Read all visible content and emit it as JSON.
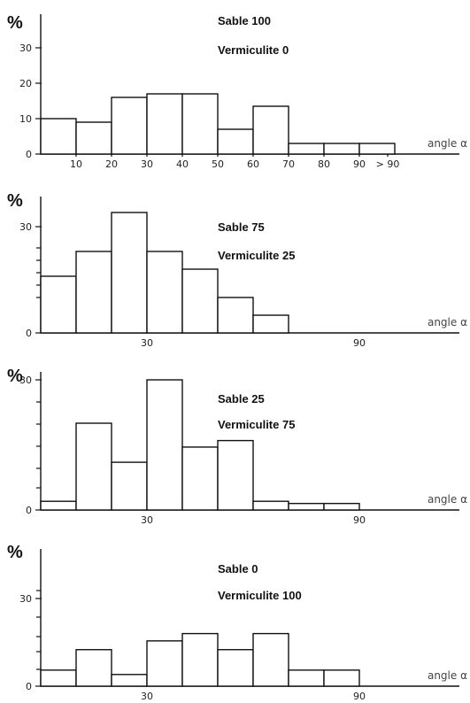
{
  "chart_data": [
    {
      "type": "bar",
      "y_unit": "%",
      "ylim": [
        0,
        40
      ],
      "y_tick_labels": [
        {
          "v": 0,
          "t": "0"
        },
        {
          "v": 10,
          "t": "10"
        },
        {
          "v": 20,
          "t": "20"
        },
        {
          "v": 30,
          "t": "30"
        }
      ],
      "x_label": "angle α",
      "x_tick_labels": [
        {
          "v": 10,
          "t": "10"
        },
        {
          "v": 20,
          "t": "20"
        },
        {
          "v": 30,
          "t": "30"
        },
        {
          "v": 40,
          "t": "40"
        },
        {
          "v": 50,
          "t": "50"
        },
        {
          "v": 60,
          "t": "60"
        },
        {
          "v": 70,
          "t": "70"
        },
        {
          "v": 80,
          "t": "80"
        },
        {
          "v": 90,
          "t": "90"
        },
        {
          "v": 98,
          "t": "> 90"
        }
      ],
      "bins": [
        [
          0,
          10
        ],
        [
          10,
          20
        ],
        [
          20,
          30
        ],
        [
          30,
          40
        ],
        [
          40,
          50
        ],
        [
          50,
          60
        ],
        [
          60,
          70
        ],
        [
          70,
          80
        ],
        [
          80,
          90
        ],
        [
          90,
          100
        ]
      ],
      "values": [
        10,
        9,
        16,
        17,
        17,
        7,
        13.5,
        3,
        3,
        3
      ],
      "legend": [
        "Sable 100",
        "Vermiculite 0"
      ]
    },
    {
      "type": "bar",
      "y_unit": "%",
      "ylim": [
        0,
        40
      ],
      "y_tick_labels": [
        {
          "v": 0,
          "t": "0"
        },
        {
          "v": 30,
          "t": "30"
        }
      ],
      "x_label": "angle α",
      "x_tick_labels": [
        {
          "v": 30,
          "t": "30"
        },
        {
          "v": 90,
          "t": "90"
        }
      ],
      "bins": [
        [
          0,
          10
        ],
        [
          10,
          20
        ],
        [
          20,
          30
        ],
        [
          30,
          40
        ],
        [
          40,
          50
        ],
        [
          50,
          60
        ],
        [
          60,
          70
        ]
      ],
      "values": [
        16,
        23,
        34,
        23,
        18,
        10,
        5
      ],
      "legend": [
        "Sable 75",
        "Vermiculite 25"
      ]
    },
    {
      "type": "bar",
      "y_unit": "%",
      "ylim": [
        0,
        40
      ],
      "y_tick_labels": [
        {
          "v": 0,
          "t": "0"
        },
        {
          "v": 30,
          "t": "30"
        }
      ],
      "x_label": "angle α",
      "x_tick_labels": [
        {
          "v": 30,
          "t": "30"
        },
        {
          "v": 90,
          "t": "90"
        }
      ],
      "bins": [
        [
          0,
          10
        ],
        [
          10,
          20
        ],
        [
          20,
          30
        ],
        [
          30,
          40
        ],
        [
          40,
          50
        ],
        [
          50,
          60
        ],
        [
          60,
          70
        ],
        [
          70,
          80
        ],
        [
          80,
          90
        ]
      ],
      "values": [
        2,
        20,
        11,
        30,
        14.5,
        16,
        2,
        1.5,
        1.5
      ],
      "legend": [
        "Sable 25",
        "Vermiculite 75"
      ]
    },
    {
      "type": "bar",
      "y_unit": "%",
      "ylim": [
        0,
        40
      ],
      "y_tick_labels": [
        {
          "v": 0,
          "t": "0"
        },
        {
          "v": 30,
          "t": "30"
        }
      ],
      "x_label": "angle α",
      "x_tick_labels": [
        {
          "v": 30,
          "t": "30"
        },
        {
          "v": 90,
          "t": "90"
        }
      ],
      "bins": [
        [
          0,
          10
        ],
        [
          10,
          20
        ],
        [
          20,
          30
        ],
        [
          30,
          40
        ],
        [
          40,
          50
        ],
        [
          50,
          60
        ],
        [
          60,
          70
        ],
        [
          70,
          80
        ],
        [
          80,
          90
        ]
      ],
      "values": [
        5.5,
        12.5,
        4,
        15.5,
        18,
        12.5,
        18,
        5.5,
        5.5
      ],
      "legend": [
        "Sable 0",
        "Vermiculite 100"
      ]
    }
  ]
}
